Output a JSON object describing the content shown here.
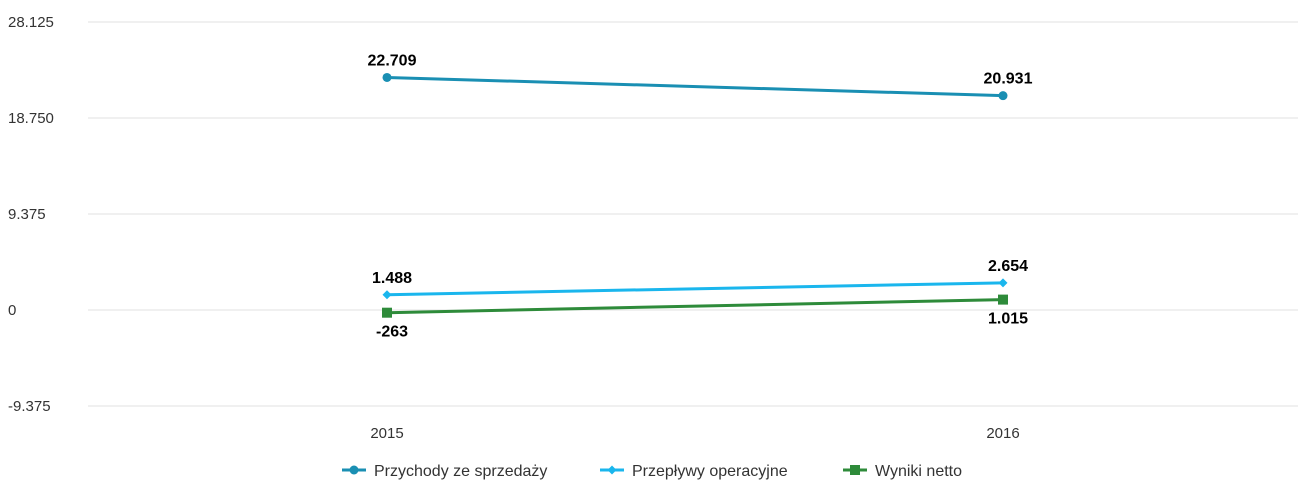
{
  "chart_data": {
    "type": "line",
    "categories": [
      "2015",
      "2016"
    ],
    "ylim": [
      -9.375,
      28.125
    ],
    "yticks": [
      -9.375,
      0,
      9.375,
      18.75,
      28.125
    ],
    "ytick_labels": [
      "-9.375",
      "0",
      "9.375",
      "18.750",
      "28.125"
    ],
    "grid": true,
    "legend_position": "bottom",
    "series": [
      {
        "name": "Przychody ze sprzedaży",
        "values": [
          22.709,
          20.931
        ],
        "labels": [
          "22.709",
          "20.931"
        ],
        "color": "#1a8fb3",
        "marker": "circle",
        "label_side": "above"
      },
      {
        "name": "Przepływy operacyjne",
        "values": [
          1.488,
          2.654
        ],
        "labels": [
          "1.488",
          "2.654"
        ],
        "color": "#1ab6ed",
        "marker": "diamond",
        "label_side": "above"
      },
      {
        "name": "Wyniki netto",
        "values": [
          -0.263,
          1.015
        ],
        "labels": [
          "-263",
          "1.015"
        ],
        "color": "#2e8b3a",
        "marker": "square",
        "label_side": "below"
      }
    ]
  }
}
